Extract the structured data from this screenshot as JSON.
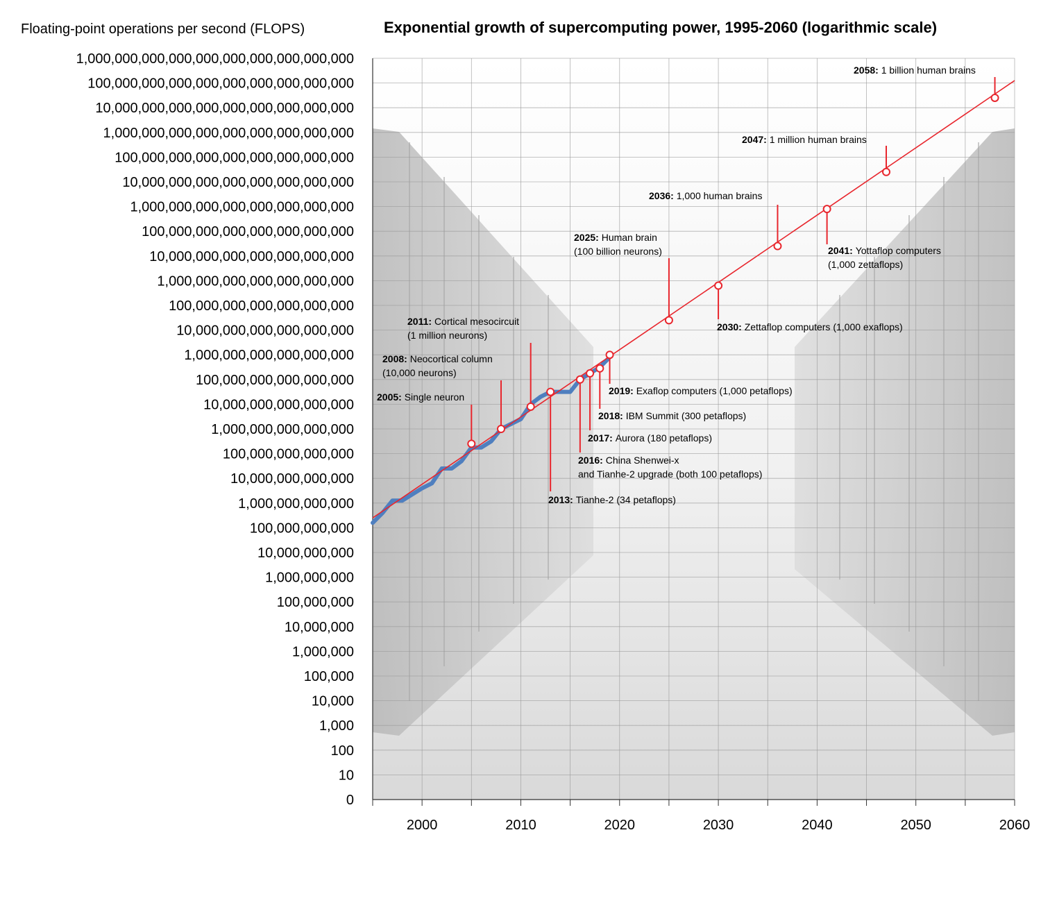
{
  "chart_data": {
    "type": "line",
    "title": "Exponential growth of supercomputing power, 1995-2060 (logarithmic scale)",
    "ylabel": "Floating-point operations per second (FLOPS)",
    "xlabel": "",
    "y_scale": "log",
    "xlim": [
      1995,
      2060
    ],
    "ylim_exponent": [
      0,
      30
    ],
    "x_ticks": [
      "2000",
      "2010",
      "2020",
      "2030",
      "2040",
      "2050",
      "2060"
    ],
    "x_tick_values": [
      2000,
      2010,
      2020,
      2030,
      2040,
      2050,
      2060
    ],
    "y_ticks": [
      "0",
      "10",
      "100",
      "1,000",
      "10,000",
      "100,000",
      "1,000,000",
      "10,000,000",
      "100,000,000",
      "1,000,000,000",
      "10,000,000,000",
      "100,000,000,000",
      "1,000,000,000,000",
      "10,000,000,000,000",
      "100,000,000,000,000",
      "1,000,000,000,000,000",
      "10,000,000,000,000,000",
      "100,000,000,000,000,000",
      "1,000,000,000,000,000,000",
      "10,000,000,000,000,000,000",
      "100,000,000,000,000,000,000",
      "1,000,000,000,000,000,000,000",
      "10,000,000,000,000,000,000,000",
      "100,000,000,000,000,000,000,000",
      "1,000,000,000,000,000,000,000,000",
      "10,000,000,000,000,000,000,000,000",
      "100,000,000,000,000,000,000,000,000",
      "1,000,000,000,000,000,000,000,000,000",
      "10,000,000,000,000,000,000,000,000,000",
      "100,000,000,000,000,000,000,000,000,000",
      "1,000,000,000,000,000,000,000,000,000,000"
    ],
    "series": [
      {
        "color": "#4f7fbf",
        "x": [
          1995,
          1996,
          1997,
          1998,
          1999,
          2000,
          2001,
          2002,
          2003,
          2004,
          2005,
          2006,
          2007,
          2008,
          2009,
          2010,
          2011,
          2012,
          2013,
          2014,
          2015,
          2016,
          2017,
          2018,
          2019
        ],
        "y_exp": [
          11.2,
          11.6,
          12.1,
          12.1,
          12.35,
          12.6,
          12.8,
          13.4,
          13.4,
          13.7,
          14.25,
          14.25,
          14.5,
          15.0,
          15.2,
          15.4,
          16.0,
          16.3,
          16.5,
          16.5,
          16.5,
          17.0,
          17.25,
          17.5,
          17.9
        ]
      },
      {
        "color": "#e8262d",
        "x": [
          1995,
          2060
        ],
        "y_exp": [
          11.4,
          29.1
        ]
      }
    ],
    "milestones": [
      {
        "year": 2005,
        "y_exp": 14.4,
        "bold": "2005:",
        "text": [
          "Single neuron"
        ]
      },
      {
        "year": 2008,
        "y_exp": 15.0,
        "bold": "2008:",
        "text": [
          "Neocortical column",
          "(10,000 neurons)"
        ]
      },
      {
        "year": 2011,
        "y_exp": 15.9,
        "bold": "2011:",
        "text": [
          "Cortical mesocircuit",
          "(1 million neurons)"
        ]
      },
      {
        "year": 2013,
        "y_exp": 16.5,
        "bold": "2013:",
        "text": [
          "Tianhe-2 (34 petaflops)"
        ]
      },
      {
        "year": 2016,
        "y_exp": 17.0,
        "bold": "2016:",
        "text": [
          "China Shenwei-x",
          "and Tianhe-2 upgrade (both 100 petaflops)"
        ]
      },
      {
        "year": 2017,
        "y_exp": 17.25,
        "bold": "2017:",
        "text": [
          "Aurora (180 petaflops)"
        ]
      },
      {
        "year": 2018,
        "y_exp": 17.45,
        "bold": "2018:",
        "text": [
          "IBM Summit (300 petaflops)"
        ]
      },
      {
        "year": 2019,
        "y_exp": 18.0,
        "bold": "2019:",
        "text": [
          "Exaflop computers (1,000 petaflops)"
        ]
      },
      {
        "year": 2025,
        "y_exp": 19.4,
        "bold": "2025:",
        "text": [
          "Human brain",
          "(100 billion neurons)"
        ]
      },
      {
        "year": 2030,
        "y_exp": 20.8,
        "bold": "2030:",
        "text": [
          "Zettaflop computers (1,000 exaflops)"
        ]
      },
      {
        "year": 2036,
        "y_exp": 22.4,
        "bold": "2036:",
        "text": [
          "1,000 human brains"
        ]
      },
      {
        "year": 2041,
        "y_exp": 23.9,
        "bold": "2041:",
        "text": [
          "Yottaflop computers",
          "(1,000 zettaflops)"
        ]
      },
      {
        "year": 2047,
        "y_exp": 25.4,
        "bold": "2047:",
        "text": [
          "1 million human brains"
        ]
      },
      {
        "year": 2058,
        "y_exp": 28.4,
        "bold": "2058:",
        "text": [
          "1 billion human brains"
        ]
      }
    ]
  }
}
